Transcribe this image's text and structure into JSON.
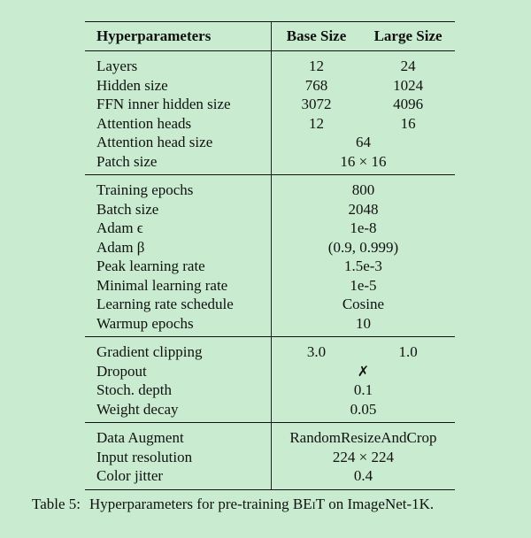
{
  "table": {
    "headers": {
      "name": "Hyperparameters",
      "base": "Base Size",
      "large": "Large Size"
    },
    "groups": [
      [
        {
          "name": "Layers",
          "base": "12",
          "large": "24"
        },
        {
          "name": "Hidden size",
          "base": "768",
          "large": "1024"
        },
        {
          "name": "FFN inner hidden size",
          "base": "3072",
          "large": "4096"
        },
        {
          "name": "Attention heads",
          "base": "12",
          "large": "16"
        },
        {
          "name": "Attention head size",
          "span": "64"
        },
        {
          "name": "Patch size",
          "span": "16 × 16"
        }
      ],
      [
        {
          "name": "Training epochs",
          "span": "800"
        },
        {
          "name": "Batch size",
          "span": "2048"
        },
        {
          "name": "Adam ϵ",
          "span": "1e-8"
        },
        {
          "name": "Adam β",
          "span": "(0.9, 0.999)"
        },
        {
          "name": "Peak learning rate",
          "span": "1.5e-3"
        },
        {
          "name": "Minimal learning rate",
          "span": "1e-5"
        },
        {
          "name": "Learning rate schedule",
          "span": "Cosine"
        },
        {
          "name": "Warmup epochs",
          "span": "10"
        }
      ],
      [
        {
          "name": "Gradient clipping",
          "base": "3.0",
          "large": "1.0"
        },
        {
          "name": "Dropout",
          "span": "✗"
        },
        {
          "name": "Stoch. depth",
          "span": "0.1"
        },
        {
          "name": "Weight decay",
          "span": "0.05"
        }
      ],
      [
        {
          "name": "Data Augment",
          "span": "RandomResizeAndCrop"
        },
        {
          "name": "Input resolution",
          "span": "224 × 224"
        },
        {
          "name": "Color jitter",
          "span": "0.4"
        }
      ]
    ]
  },
  "caption": {
    "label": "Table 5:",
    "text_before": "Hyperparameters for pre-training ",
    "model": "BEiT",
    "text_after": " on ImageNet-1K."
  }
}
